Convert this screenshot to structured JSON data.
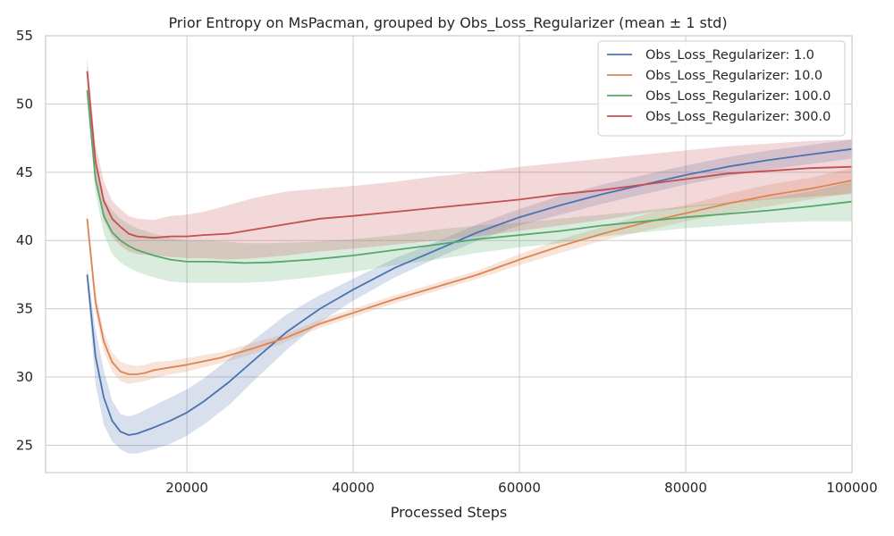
{
  "chart_data": {
    "type": "line",
    "title": "Prior Entropy on MsPacman, grouped by Obs_Loss_Regularizer (mean ± 1 std)",
    "xlabel": "Processed Steps",
    "ylabel": "",
    "xlim": [
      3000,
      100000
    ],
    "ylim": [
      23,
      55
    ],
    "xticks": [
      20000,
      40000,
      60000,
      80000,
      100000
    ],
    "yticks": [
      25,
      30,
      35,
      40,
      45,
      50,
      55
    ],
    "grid": true,
    "legend_position": "top-right",
    "shaded_band": "mean ± 1 std",
    "series": [
      {
        "name": "Obs_Loss_Regularizer: 1.0",
        "color": "#4c72b0",
        "x": [
          8000,
          9000,
          10000,
          11000,
          12000,
          13000,
          14000,
          16000,
          18000,
          20000,
          22000,
          25000,
          28000,
          32000,
          36000,
          40000,
          45000,
          50000,
          55000,
          60000,
          65000,
          70000,
          75000,
          80000,
          85000,
          90000,
          95000,
          100000
        ],
        "mean": [
          37.5,
          31.5,
          28.5,
          26.8,
          26.0,
          25.75,
          25.85,
          26.3,
          26.8,
          27.4,
          28.2,
          29.6,
          31.2,
          33.3,
          35.0,
          36.4,
          38.0,
          39.3,
          40.6,
          41.7,
          42.6,
          43.4,
          44.1,
          44.8,
          45.4,
          45.9,
          46.3,
          46.7
        ],
        "lower": [
          37.0,
          29.5,
          26.5,
          25.3,
          24.7,
          24.4,
          24.4,
          24.7,
          25.1,
          25.7,
          26.5,
          27.9,
          29.7,
          32.0,
          34.0,
          35.6,
          37.3,
          38.7,
          40.0,
          41.1,
          41.9,
          42.7,
          43.4,
          44.1,
          44.7,
          45.2,
          45.6,
          46.0
        ],
        "upper": [
          38.0,
          33.5,
          30.5,
          28.3,
          27.3,
          27.1,
          27.3,
          27.9,
          28.5,
          29.1,
          29.9,
          31.3,
          32.7,
          34.6,
          36.0,
          37.2,
          38.7,
          39.9,
          41.2,
          42.3,
          43.3,
          44.1,
          44.8,
          45.5,
          46.1,
          46.6,
          47.0,
          47.4
        ]
      },
      {
        "name": "Obs_Loss_Regularizer: 10.0",
        "color": "#dd8452",
        "x": [
          8000,
          9000,
          10000,
          11000,
          12000,
          13000,
          14000,
          15000,
          16000,
          18000,
          20000,
          24000,
          28000,
          32000,
          36000,
          40000,
          45000,
          50000,
          55000,
          60000,
          65000,
          70000,
          75000,
          80000,
          85000,
          90000,
          95000,
          100000
        ],
        "mean": [
          41.6,
          35.5,
          32.6,
          31.1,
          30.4,
          30.2,
          30.2,
          30.3,
          30.5,
          30.7,
          30.9,
          31.4,
          32.1,
          32.9,
          33.9,
          34.7,
          35.7,
          36.6,
          37.5,
          38.6,
          39.6,
          40.5,
          41.3,
          42.0,
          42.7,
          43.3,
          43.8,
          44.4
        ],
        "lower": [
          41.1,
          34.7,
          31.9,
          30.4,
          29.7,
          29.5,
          29.6,
          29.7,
          29.9,
          30.2,
          30.4,
          31.0,
          31.7,
          32.6,
          33.6,
          34.4,
          35.4,
          36.3,
          37.2,
          38.2,
          39.1,
          40.0,
          40.7,
          41.4,
          42.0,
          42.5,
          43.0,
          43.5
        ],
        "upper": [
          42.1,
          36.3,
          33.3,
          31.8,
          31.1,
          30.9,
          30.8,
          30.9,
          31.1,
          31.2,
          31.4,
          31.8,
          32.5,
          33.2,
          34.2,
          35.0,
          36.0,
          36.9,
          37.8,
          39.0,
          40.1,
          41.0,
          41.9,
          42.6,
          43.4,
          44.1,
          44.6,
          45.3
        ]
      },
      {
        "name": "Obs_Loss_Regularizer: 100.0",
        "color": "#55a868",
        "x": [
          8000,
          9000,
          10000,
          11000,
          12000,
          13000,
          14000,
          16000,
          18000,
          20000,
          23000,
          27000,
          30000,
          35000,
          40000,
          45000,
          50000,
          55000,
          60000,
          65000,
          70000,
          75000,
          80000,
          85000,
          90000,
          95000,
          100000
        ],
        "mean": [
          51.0,
          44.5,
          41.8,
          40.6,
          40.0,
          39.6,
          39.3,
          38.9,
          38.6,
          38.45,
          38.45,
          38.35,
          38.4,
          38.6,
          38.9,
          39.3,
          39.7,
          40.1,
          40.4,
          40.7,
          41.1,
          41.4,
          41.7,
          41.95,
          42.2,
          42.5,
          42.85
        ],
        "lower": [
          50.5,
          43.5,
          40.5,
          39.0,
          38.4,
          38.0,
          37.7,
          37.3,
          37.0,
          36.9,
          36.9,
          36.9,
          37.0,
          37.3,
          37.7,
          38.2,
          38.6,
          39.1,
          39.5,
          39.8,
          40.3,
          40.6,
          40.9,
          41.1,
          41.3,
          41.4,
          41.4
        ],
        "upper": [
          51.5,
          45.5,
          43.1,
          42.2,
          41.6,
          41.2,
          40.9,
          40.5,
          40.2,
          40.0,
          40.0,
          39.8,
          39.8,
          39.9,
          40.1,
          40.4,
          40.8,
          41.1,
          41.3,
          41.6,
          41.9,
          42.2,
          42.5,
          42.8,
          43.1,
          43.6,
          44.3
        ]
      },
      {
        "name": "Obs_Loss_Regularizer: 300.0",
        "color": "#c44e52",
        "x": [
          8000,
          9000,
          10000,
          11000,
          12000,
          13000,
          14000,
          16000,
          18000,
          20000,
          22000,
          25000,
          28000,
          32000,
          36000,
          40000,
          45000,
          50000,
          55000,
          60000,
          65000,
          70000,
          75000,
          80000,
          85000,
          90000,
          95000,
          100000
        ],
        "mean": [
          52.4,
          45.8,
          42.9,
          41.6,
          41.0,
          40.5,
          40.3,
          40.2,
          40.3,
          40.3,
          40.4,
          40.5,
          40.8,
          41.2,
          41.6,
          41.8,
          42.1,
          42.4,
          42.7,
          43.0,
          43.4,
          43.7,
          44.1,
          44.5,
          44.9,
          45.1,
          45.3,
          45.4
        ],
        "lower": [
          51.5,
          44.5,
          41.5,
          40.3,
          39.6,
          39.2,
          39.0,
          38.9,
          38.8,
          38.7,
          38.7,
          38.6,
          38.7,
          38.9,
          39.2,
          39.4,
          39.7,
          40.0,
          40.3,
          40.7,
          41.1,
          41.5,
          42.0,
          42.4,
          42.7,
          43.0,
          43.2,
          43.4
        ],
        "upper": [
          53.5,
          47.0,
          44.3,
          42.9,
          42.3,
          41.8,
          41.6,
          41.5,
          41.8,
          41.9,
          42.1,
          42.6,
          43.1,
          43.6,
          43.8,
          44.0,
          44.3,
          44.7,
          45.0,
          45.4,
          45.7,
          46.0,
          46.3,
          46.6,
          46.9,
          47.1,
          47.3,
          47.4
        ]
      }
    ]
  }
}
